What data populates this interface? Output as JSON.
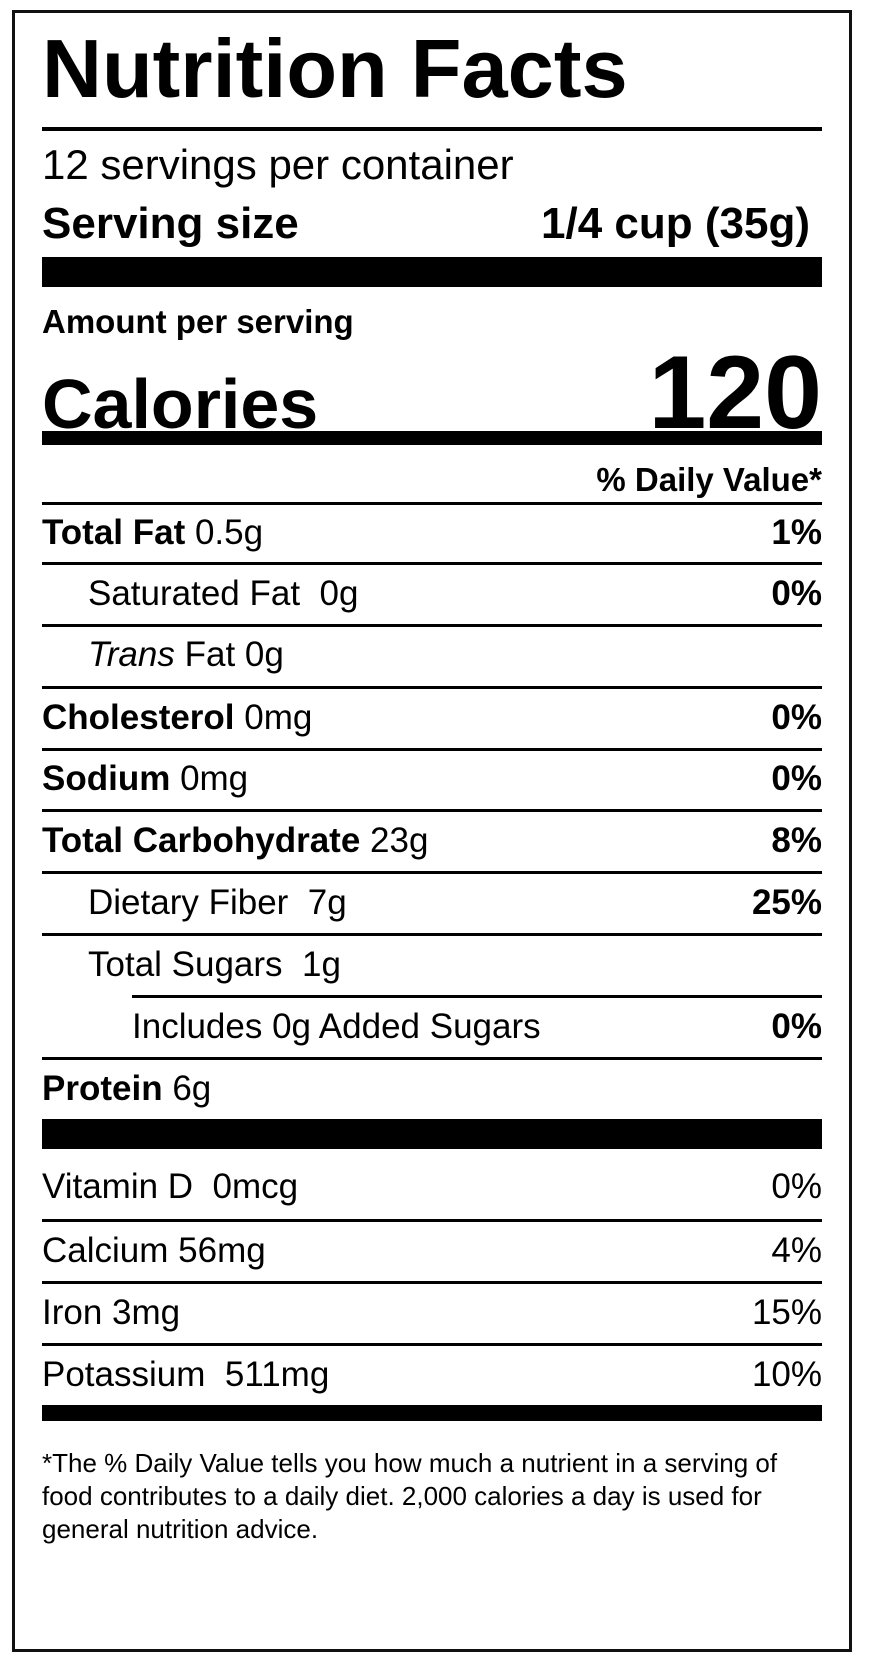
{
  "title": "Nutrition Facts",
  "servings_per_container": "12 servings per container",
  "serving_size": {
    "label": "Serving size",
    "value": "1/4 cup (35g)"
  },
  "amount_per_serving": "Amount per serving",
  "calories": {
    "label": "Calories",
    "value": "120"
  },
  "daily_value_header": "% Daily Value*",
  "nutrients": [
    {
      "name": "Total Fat",
      "amount": "0.5g",
      "dv": "1%",
      "indent": 0,
      "bold": true
    },
    {
      "name": "Saturated Fat",
      "amount": "0g",
      "dv": "0%",
      "indent": 1,
      "bold": false
    },
    {
      "name": "Trans",
      "name_rest": " Fat",
      "amount": "0g",
      "dv": "",
      "indent": 1,
      "bold": false,
      "italic_name": true
    },
    {
      "name": "Cholesterol",
      "amount": "0mg",
      "dv": "0%",
      "indent": 0,
      "bold": true
    },
    {
      "name": "Sodium",
      "amount": "0mg",
      "dv": "0%",
      "indent": 0,
      "bold": true
    },
    {
      "name": "Total Carbohydrate",
      "amount": "23g",
      "dv": "8%",
      "indent": 0,
      "bold": true
    },
    {
      "name": "Dietary Fiber",
      "amount": "7g",
      "dv": "25%",
      "indent": 1,
      "bold": false
    },
    {
      "name": "Total Sugars",
      "amount": "1g",
      "dv": "",
      "indent": 1,
      "bold": false
    },
    {
      "name": "Includes 0g Added Sugars",
      "amount": "",
      "dv": "0%",
      "indent": 2,
      "bold": false
    },
    {
      "name": "Protein",
      "amount": "6g",
      "dv": "",
      "indent": 0,
      "bold": true
    }
  ],
  "vitamins": [
    {
      "name": "Vitamin D",
      "amount": "0mcg",
      "dv": "0%"
    },
    {
      "name": "Calcium",
      "amount": "56mg",
      "dv": "4%"
    },
    {
      "name": "Iron",
      "amount": "3mg",
      "dv": "15%"
    },
    {
      "name": "Potassium",
      "amount": "511mg",
      "dv": "10%"
    }
  ],
  "footnote": "*The % Daily Value tells you how much a nutrient in a serving of food contributes to a daily diet. 2,000 calories a day is used for general nutrition advice."
}
